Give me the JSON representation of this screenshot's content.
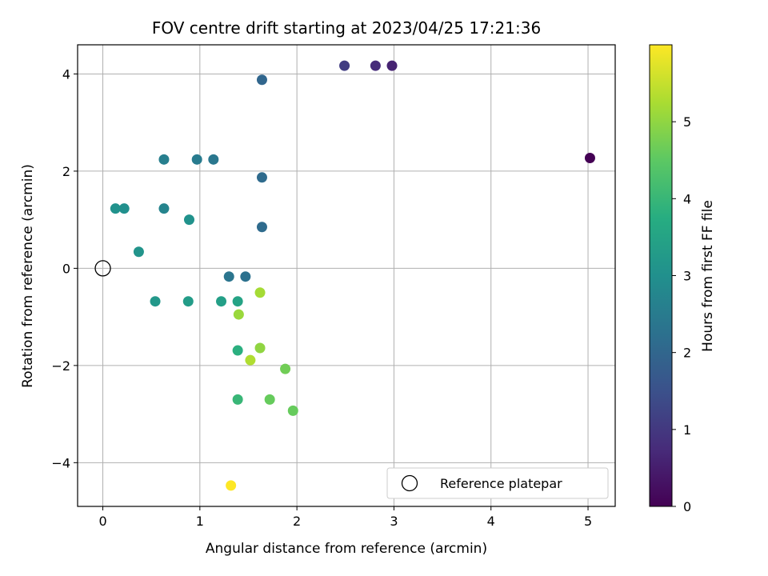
{
  "chart_data": {
    "type": "scatter",
    "title": "FOV centre drift starting at 2023/04/25 17:21:36",
    "xlabel": "Angular distance from reference (arcmin)",
    "ylabel": "Rotation from reference (arcmin)",
    "xlim": [
      -0.26,
      5.28
    ],
    "ylim": [
      -4.9,
      4.6
    ],
    "xticks": [
      0,
      1,
      2,
      3,
      4,
      5
    ],
    "yticks": [
      -4,
      -2,
      0,
      2,
      4
    ],
    "xtick_labels": [
      "0",
      "1",
      "2",
      "3",
      "4",
      "5"
    ],
    "ytick_labels": [
      "−4",
      "−2",
      "0",
      "2",
      "4"
    ],
    "grid": true,
    "legend": {
      "label": "Reference platepar",
      "placement": "lower-right"
    },
    "reference_point": {
      "x": 0,
      "y": 0
    },
    "colormap": "viridis",
    "colorbar": {
      "label": "Hours from first FF file",
      "min": 0,
      "max": 6,
      "ticks": [
        0,
        1,
        2,
        3,
        4,
        5
      ],
      "tick_labels": [
        "0",
        "1",
        "2",
        "3",
        "4",
        "5"
      ]
    },
    "points": [
      {
        "x": 5.02,
        "y": 2.27,
        "hours": 0.0
      },
      {
        "x": 2.98,
        "y": 4.17,
        "hours": 0.6
      },
      {
        "x": 2.81,
        "y": 4.17,
        "hours": 0.75
      },
      {
        "x": 2.49,
        "y": 4.17,
        "hours": 1.1
      },
      {
        "x": 1.64,
        "y": 3.88,
        "hours": 2.0
      },
      {
        "x": 1.64,
        "y": 1.87,
        "hours": 2.1
      },
      {
        "x": 1.14,
        "y": 2.24,
        "hours": 2.4
      },
      {
        "x": 0.97,
        "y": 2.24,
        "hours": 2.5
      },
      {
        "x": 0.63,
        "y": 2.24,
        "hours": 2.6
      },
      {
        "x": 1.64,
        "y": 0.85,
        "hours": 2.1
      },
      {
        "x": 1.47,
        "y": -0.17,
        "hours": 2.25
      },
      {
        "x": 1.3,
        "y": -0.17,
        "hours": 2.35
      },
      {
        "x": 0.63,
        "y": 1.23,
        "hours": 2.7
      },
      {
        "x": 0.89,
        "y": 1.0,
        "hours": 3.05
      },
      {
        "x": 0.22,
        "y": 1.23,
        "hours": 3.0
      },
      {
        "x": 0.13,
        "y": 1.23,
        "hours": 3.05
      },
      {
        "x": 0.37,
        "y": 0.34,
        "hours": 3.1
      },
      {
        "x": 0.54,
        "y": -0.68,
        "hours": 3.2
      },
      {
        "x": 0.88,
        "y": -0.68,
        "hours": 3.3
      },
      {
        "x": 1.22,
        "y": -0.68,
        "hours": 3.4
      },
      {
        "x": 1.39,
        "y": -0.68,
        "hours": 3.5
      },
      {
        "x": 1.39,
        "y": -1.69,
        "hours": 3.8
      },
      {
        "x": 1.39,
        "y": -2.7,
        "hours": 4.0
      },
      {
        "x": 1.72,
        "y": -2.7,
        "hours": 4.6
      },
      {
        "x": 1.96,
        "y": -2.93,
        "hours": 4.6
      },
      {
        "x": 1.88,
        "y": -2.07,
        "hours": 4.7
      },
      {
        "x": 1.62,
        "y": -1.64,
        "hours": 5.0
      },
      {
        "x": 1.4,
        "y": -0.95,
        "hours": 5.1
      },
      {
        "x": 1.62,
        "y": -0.5,
        "hours": 5.2
      },
      {
        "x": 1.52,
        "y": -1.89,
        "hours": 5.3
      },
      {
        "x": 1.32,
        "y": -4.47,
        "hours": 6.0
      }
    ]
  }
}
